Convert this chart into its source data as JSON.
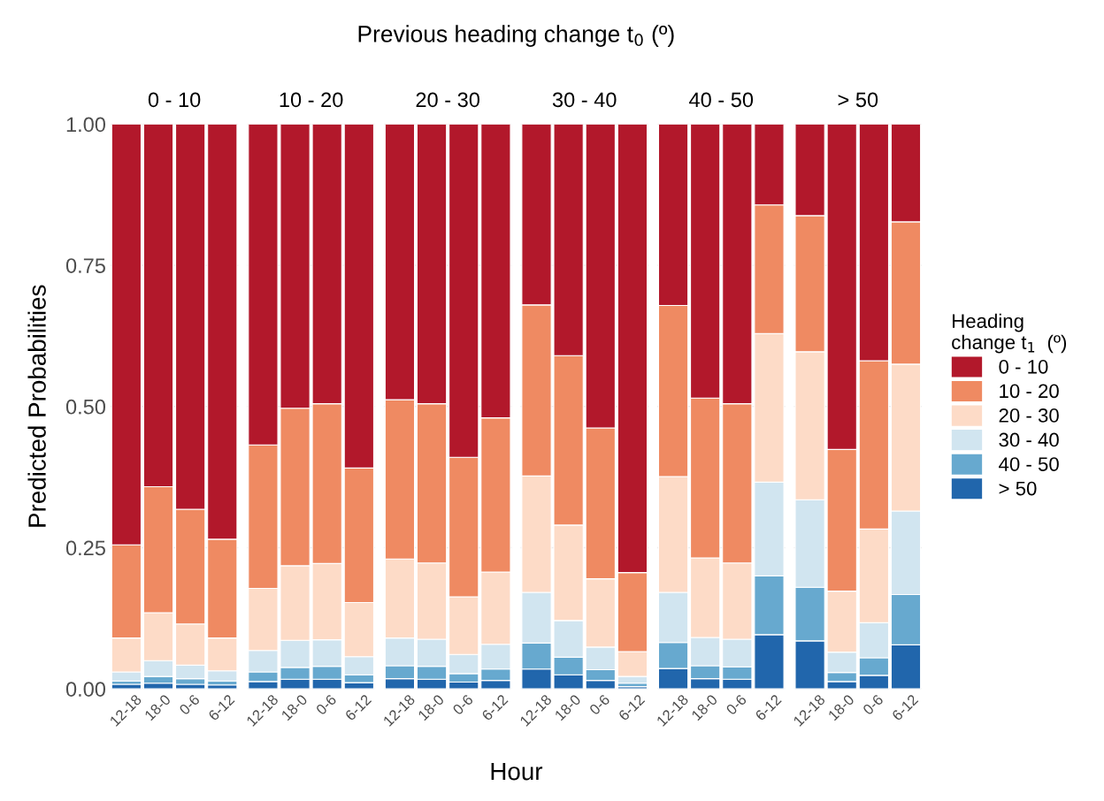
{
  "chart_data": [
    {
      "type": "bar",
      "stacked": true,
      "title": "0 - 10",
      "annotations": [
        "Previous heading change t$_{0}$ (º)",
        "Hour"
      ],
      "ylabel": "Predicted Probabilities",
      "categories": [
        "12-18",
        "18-0",
        "0-6",
        "6-12"
      ],
      "ylim": [
        0,
        1
      ],
      "yticks": [
        {
          "value": 0,
          "label": "0.00"
        },
        {
          "value": 0.25,
          "label": "0.25"
        },
        {
          "value": 0.5,
          "label": "0.50"
        },
        {
          "value": 0.75,
          "label": "0.75"
        },
        {
          "value": 1,
          "label": "1.00"
        }
      ],
      "grid": "y",
      "series": [
        {
          "color": "#2166ac",
          "values": [
            0.008,
            0.01,
            0.008,
            0.007
          ]
        },
        {
          "color": "#67a9cf",
          "values": [
            0.006,
            0.012,
            0.01,
            0.007
          ]
        },
        {
          "color": "#d1e5f0",
          "values": [
            0.016,
            0.028,
            0.024,
            0.018
          ]
        },
        {
          "color": "#fddbc7",
          "values": [
            0.06,
            0.085,
            0.073,
            0.058
          ]
        },
        {
          "color": "#ef8a62",
          "values": [
            0.165,
            0.223,
            0.203,
            0.175
          ]
        },
        {
          "color": "#b2182b",
          "values": [
            0.745,
            0.642,
            0.682,
            0.735
          ]
        }
      ]
    },
    {
      "type": "bar",
      "stacked": true,
      "title": "10 - 20",
      "tick_labels": "x",
      "categories": [
        "12-18",
        "18-0",
        "0-6",
        "6-12"
      ],
      "ylim": [
        0,
        1
      ],
      "yticks": [
        0,
        0.25,
        0.5,
        0.75,
        1
      ],
      "grid": "y",
      "series": [
        {
          "color": "#2166ac",
          "values": [
            0.013,
            0.017,
            0.017,
            0.011
          ]
        },
        {
          "color": "#67a9cf",
          "values": [
            0.017,
            0.021,
            0.023,
            0.014
          ]
        },
        {
          "color": "#d1e5f0",
          "values": [
            0.038,
            0.048,
            0.047,
            0.032
          ]
        },
        {
          "color": "#fddbc7",
          "values": [
            0.11,
            0.132,
            0.135,
            0.096
          ]
        },
        {
          "color": "#ef8a62",
          "values": [
            0.254,
            0.279,
            0.283,
            0.238
          ]
        },
        {
          "color": "#b2182b",
          "values": [
            0.568,
            0.503,
            0.495,
            0.609
          ]
        }
      ]
    },
    {
      "type": "bar",
      "stacked": true,
      "title": "20 - 30",
      "tick_labels": "x",
      "categories": [
        "12-18",
        "18-0",
        "0-6",
        "6-12"
      ],
      "ylim": [
        0,
        1
      ],
      "yticks": [
        0,
        0.25,
        0.5,
        0.75,
        1
      ],
      "grid": "y",
      "series": [
        {
          "color": "#2166ac",
          "values": [
            0.018,
            0.017,
            0.012,
            0.015
          ]
        },
        {
          "color": "#67a9cf",
          "values": [
            0.023,
            0.023,
            0.015,
            0.02
          ]
        },
        {
          "color": "#d1e5f0",
          "values": [
            0.049,
            0.048,
            0.034,
            0.044
          ]
        },
        {
          "color": "#fddbc7",
          "values": [
            0.14,
            0.135,
            0.102,
            0.128
          ]
        },
        {
          "color": "#ef8a62",
          "values": [
            0.282,
            0.282,
            0.247,
            0.273
          ]
        },
        {
          "color": "#b2182b",
          "values": [
            0.488,
            0.495,
            0.59,
            0.52
          ]
        }
      ]
    },
    {
      "type": "bar",
      "stacked": true,
      "title": "30 - 40",
      "tick_labels": "x",
      "categories": [
        "12-18",
        "18-0",
        "0-6",
        "6-12"
      ],
      "ylim": [
        0,
        1
      ],
      "yticks": [
        0,
        0.25,
        0.5,
        0.75,
        1
      ],
      "grid": "y",
      "series": [
        {
          "color": "#2166ac",
          "values": [
            0.035,
            0.025,
            0.015,
            0.004
          ]
        },
        {
          "color": "#67a9cf",
          "values": [
            0.046,
            0.031,
            0.019,
            0.006
          ]
        },
        {
          "color": "#d1e5f0",
          "values": [
            0.09,
            0.065,
            0.04,
            0.012
          ]
        },
        {
          "color": "#fddbc7",
          "values": [
            0.206,
            0.169,
            0.121,
            0.044
          ]
        },
        {
          "color": "#ef8a62",
          "values": [
            0.303,
            0.3,
            0.267,
            0.14
          ]
        },
        {
          "color": "#b2182b",
          "values": [
            0.32,
            0.41,
            0.538,
            0.794
          ]
        }
      ]
    },
    {
      "type": "bar",
      "stacked": true,
      "title": "40 - 50",
      "tick_labels": "x",
      "categories": [
        "12-18",
        "18-0",
        "0-6",
        "6-12"
      ],
      "ylim": [
        0,
        1
      ],
      "yticks": [
        0,
        0.25,
        0.5,
        0.75,
        1
      ],
      "grid": "y",
      "series": [
        {
          "color": "#2166ac",
          "values": [
            0.036,
            0.018,
            0.017,
            0.096
          ]
        },
        {
          "color": "#67a9cf",
          "values": [
            0.046,
            0.023,
            0.022,
            0.104
          ]
        },
        {
          "color": "#d1e5f0",
          "values": [
            0.089,
            0.05,
            0.049,
            0.166
          ]
        },
        {
          "color": "#fddbc7",
          "values": [
            0.205,
            0.141,
            0.135,
            0.263
          ]
        },
        {
          "color": "#ef8a62",
          "values": [
            0.303,
            0.283,
            0.282,
            0.228
          ]
        },
        {
          "color": "#b2182b",
          "values": [
            0.321,
            0.485,
            0.495,
            0.143
          ]
        }
      ]
    },
    {
      "type": "bar",
      "stacked": true,
      "title": "> 50",
      "tick_labels": "x",
      "legend": "right",
      "legend_title": "Heading\nchange t$_{1}$  (º)",
      "categories": [
        "12-18",
        "18-0",
        "0-6",
        "6-12"
      ],
      "ylim": [
        0,
        1
      ],
      "yticks": [
        0,
        0.25,
        0.5,
        0.75,
        1
      ],
      "grid": "y",
      "series": [
        {
          "name": "> 50",
          "color": "#2166ac",
          "values": [
            0.085,
            0.013,
            0.024,
            0.078
          ]
        },
        {
          "name": "40 - 50",
          "color": "#67a9cf",
          "values": [
            0.095,
            0.016,
            0.031,
            0.089
          ]
        },
        {
          "name": "30 - 40",
          "color": "#d1e5f0",
          "values": [
            0.155,
            0.036,
            0.062,
            0.148
          ]
        },
        {
          "name": "20 - 30",
          "color": "#fddbc7",
          "values": [
            0.262,
            0.108,
            0.166,
            0.26
          ]
        },
        {
          "name": "10 - 20",
          "color": "#ef8a62",
          "values": [
            0.241,
            0.251,
            0.298,
            0.252
          ]
        },
        {
          "name": "0 - 10",
          "color": "#b2182b",
          "values": [
            0.162,
            0.576,
            0.419,
            0.173
          ]
        }
      ]
    }
  ]
}
